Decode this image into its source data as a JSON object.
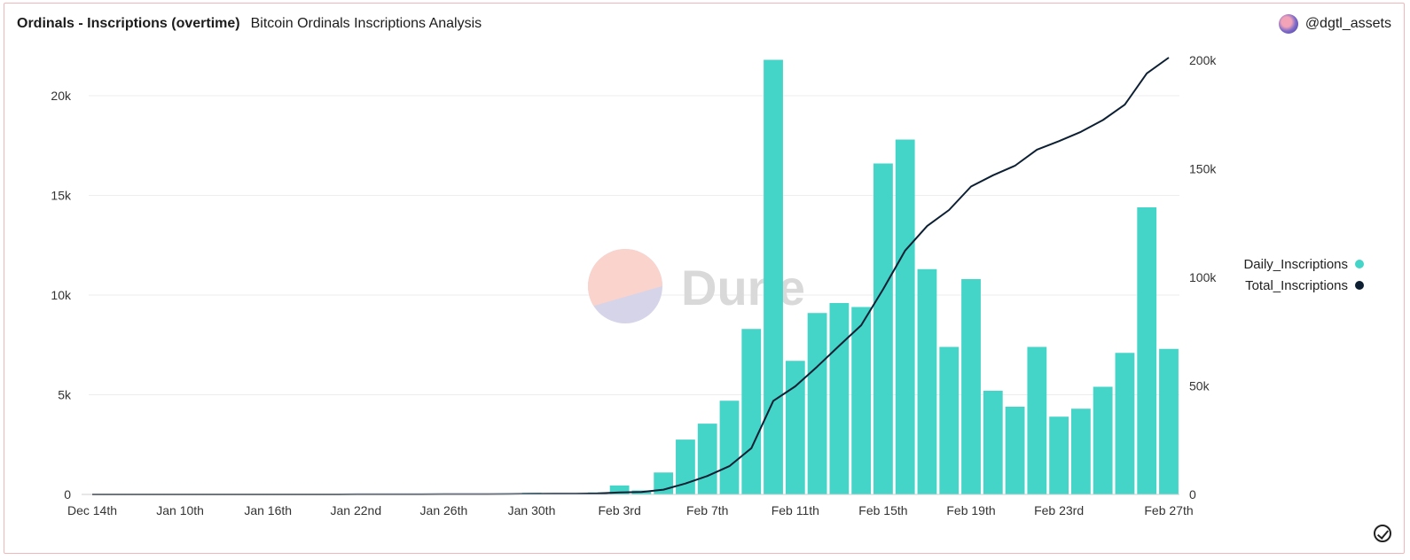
{
  "header": {
    "title": "Ordinals - Inscriptions (overtime)",
    "subtitle": "Bitcoin Ordinals Inscriptions Analysis",
    "username": "@dgtl_assets"
  },
  "watermark": "Dune",
  "colors": {
    "bar": "#44d4c8",
    "line": "#0d1f33",
    "grid": "#ededed",
    "watermark_top": "#f9d3cc",
    "watermark_bottom": "#d6d4e9"
  },
  "chart_data": {
    "type": "bar",
    "x_ticks": [
      "Dec 14th",
      "Jan 10th",
      "Jan 16th",
      "Jan 22nd",
      "Jan 26th",
      "Jan 30th",
      "Feb 3rd",
      "Feb 7th",
      "Feb 11th",
      "Feb 15th",
      "Feb 19th",
      "Feb 23rd",
      "Feb 27th"
    ],
    "y_left": {
      "ylim": [
        0,
        22000
      ],
      "ticks": [
        "0",
        "5k",
        "10k",
        "15k",
        "20k"
      ],
      "tick_values": [
        0,
        5000,
        10000,
        15000,
        20000
      ]
    },
    "y_right": {
      "ylim": [
        0,
        202000
      ],
      "ticks": [
        "0",
        "50k",
        "100k",
        "150k",
        "200k"
      ],
      "tick_values": [
        0,
        50000,
        100000,
        150000,
        200000
      ]
    },
    "legend_position": "right",
    "grid": true,
    "series": [
      {
        "name": "Daily_Inscriptions",
        "kind": "bar",
        "axis": "left",
        "values": [
          2,
          1,
          1,
          1,
          1,
          1,
          2,
          1,
          1,
          1,
          2,
          2,
          2,
          3,
          5,
          10,
          15,
          20,
          30,
          40,
          80,
          60,
          30,
          100,
          450,
          200,
          1100,
          2750,
          3550,
          4700,
          8300,
          21800,
          6700,
          9100,
          9600,
          9400,
          16600,
          17800,
          11300,
          7400,
          10800,
          5200,
          4400,
          7400,
          3900,
          4300,
          5400,
          7100,
          14400,
          7300
        ]
      },
      {
        "name": "Total_Inscriptions",
        "kind": "line",
        "axis": "right",
        "values": [
          0,
          0,
          0,
          0,
          0,
          0,
          0,
          0,
          0,
          0,
          10,
          20,
          30,
          40,
          50,
          60,
          80,
          100,
          130,
          170,
          250,
          310,
          340,
          440,
          900,
          1100,
          2200,
          5000,
          8500,
          13000,
          21300,
          43100,
          49800,
          58900,
          68500,
          77900,
          94500,
          112300,
          123600,
          131000,
          141800,
          147000,
          151400,
          158800,
          162700,
          167000,
          172400,
          179500,
          193900,
          201200
        ]
      }
    ]
  }
}
